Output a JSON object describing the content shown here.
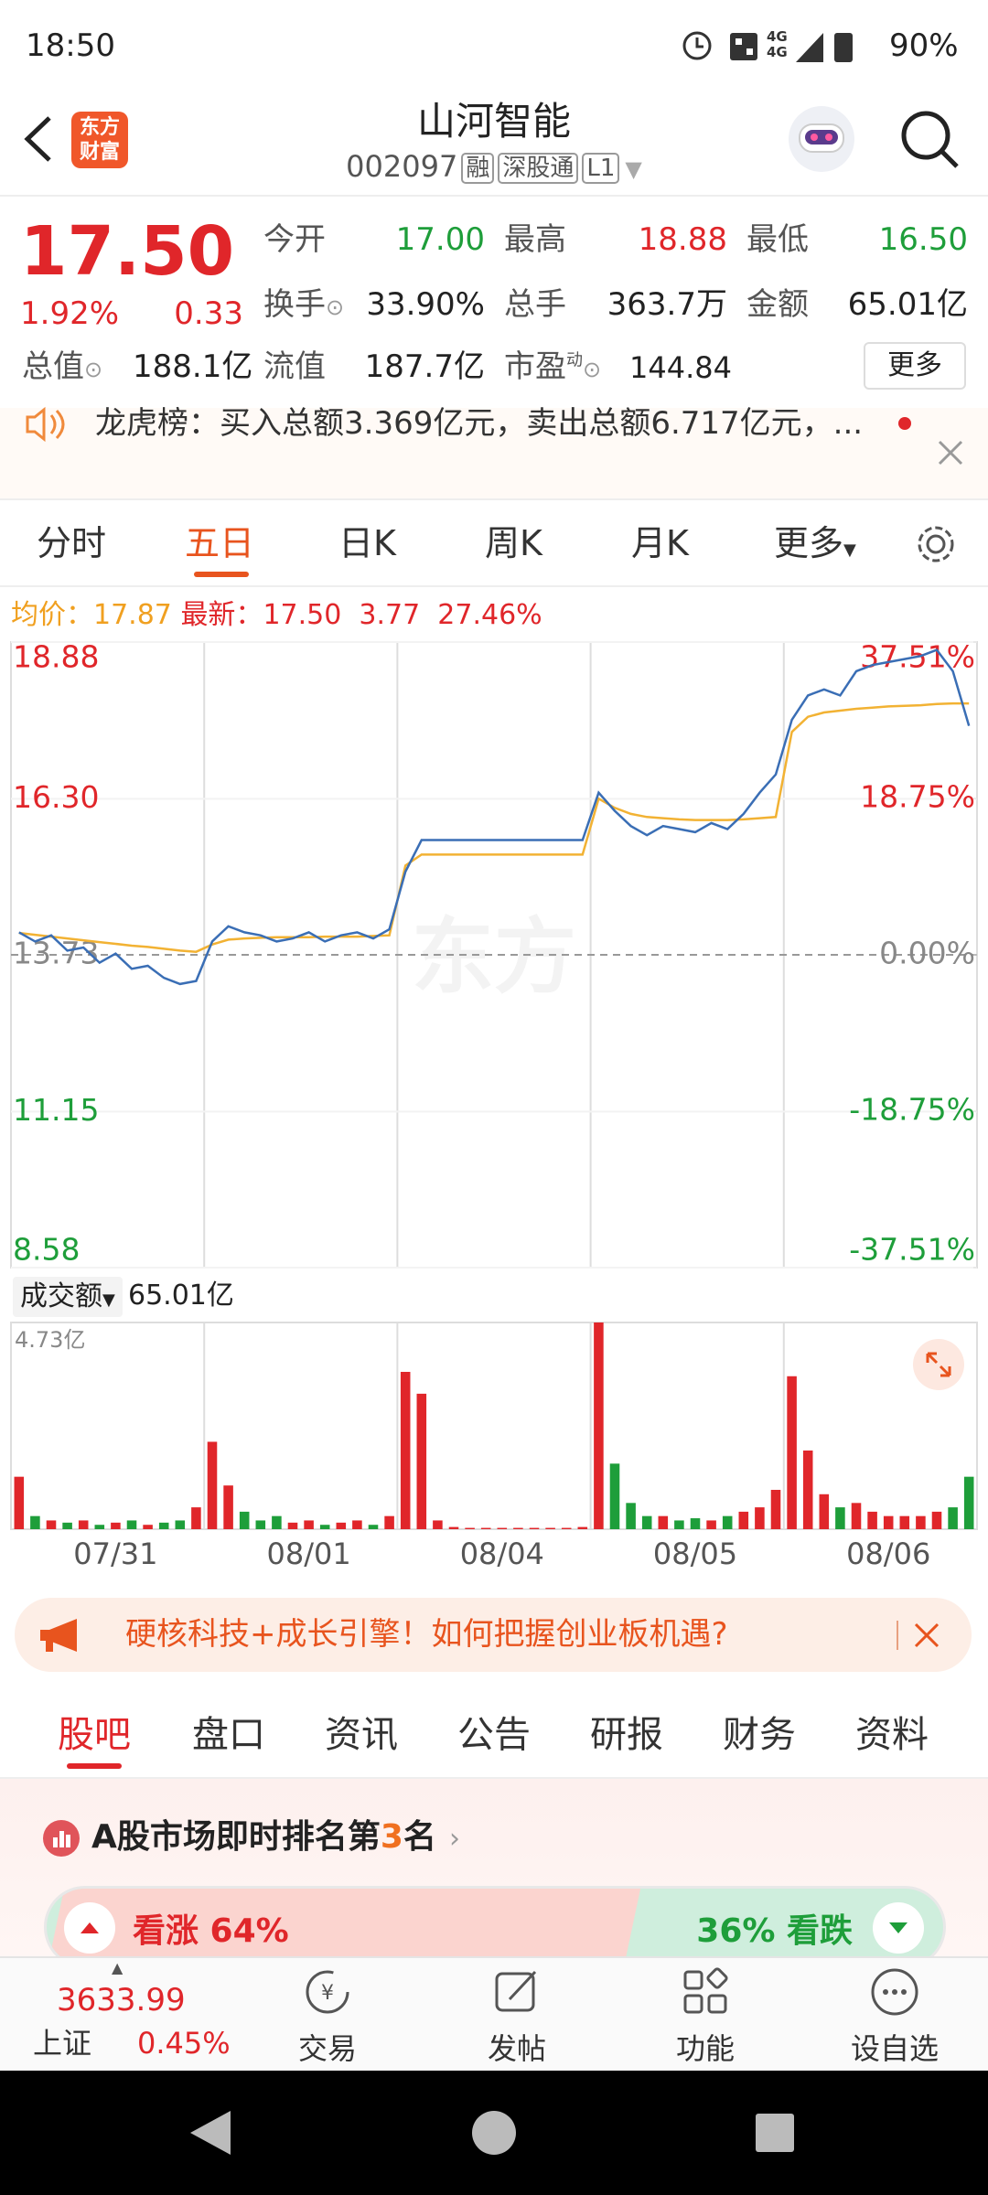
{
  "status": {
    "time": "18:50",
    "net": "4G",
    "battery": "90%"
  },
  "header": {
    "logo": [
      "东方",
      "财富"
    ],
    "title": "山河智能",
    "code": "002097",
    "tags": [
      "融",
      "深股通",
      "L1"
    ]
  },
  "quote": {
    "price": "17.50",
    "pct": "1.92%",
    "change": "0.33",
    "fields": [
      {
        "label": "今开",
        "value": "17.00"
      },
      {
        "label": "最高",
        "value": "18.88"
      },
      {
        "label": "最低",
        "value": "16.50"
      },
      {
        "label": "换手",
        "value": "33.90%"
      },
      {
        "label": "总手",
        "value": "363.7万"
      },
      {
        "label": "金额",
        "value": "65.01亿"
      },
      {
        "label": "总值",
        "value": "188.1亿"
      },
      {
        "label": "流值",
        "value": "187.7亿"
      },
      {
        "label": "市盈",
        "sup": "动",
        "value": "144.84"
      }
    ],
    "more": "更多"
  },
  "notice": "龙虎榜：买入总额3.369亿元，卖出总额6.717亿元，...",
  "tabs": [
    "分时",
    "五日",
    "日K",
    "周K",
    "月K",
    "更多"
  ],
  "chart_data": [
    {
      "type": "line",
      "change": "3.77",
      "change_pct": "27.46%",
      "categories": [
        null,
        null,
        null,
        null,
        null,
        null,
        "07/31",
        null,
        null,
        null,
        null,
        null,
        null,
        null,
        null,
        null,
        null,
        null,
        "08/01",
        null,
        null,
        null,
        null,
        null,
        null,
        null,
        null,
        null,
        null,
        null,
        "08/04",
        null,
        null,
        null,
        null,
        null,
        null,
        null,
        null,
        null,
        null,
        null,
        "08/05",
        null,
        null,
        null,
        null,
        null,
        null,
        null,
        null,
        null,
        null,
        null,
        "08/06",
        null,
        null,
        null,
        null,
        null
      ],
      "ylim": [
        8.58,
        18.88
      ],
      "yticks": [
        18.88,
        {
          "value": 16.3,
          "label": "16.30"
        },
        13.73,
        11.15,
        8.58
      ],
      "y2lim": [
        -37.51,
        37.51
      ],
      "y2ticks": [
        {
          "value": 37.51,
          "label": "37.51%"
        },
        {
          "value": 18.75,
          "label": "18.75%"
        },
        {
          "value": 0,
          "label": "0.00%"
        },
        {
          "value": -18.75,
          "label": "-18.75%"
        },
        {
          "value": -37.51,
          "label": "-37.51%"
        }
      ],
      "grid": true,
      "series": [
        {
          "name": "均价：",
          "current": "17.87",
          "color": "#f2b233",
          "values": [
            14.09,
            14.06,
            14.03,
            14.0,
            13.97,
            13.94,
            13.91,
            13.88,
            13.86,
            13.83,
            13.8,
            13.78,
            13.9,
            13.98,
            14.0,
            14.01,
            14.02,
            14.02,
            14.02,
            14.03,
            14.03,
            14.03,
            14.04,
            14.05,
            15.2,
            15.38,
            15.38,
            15.38,
            15.38,
            15.38,
            15.38,
            15.38,
            15.38,
            15.38,
            15.38,
            15.38,
            16.3,
            16.15,
            16.05,
            16.0,
            15.98,
            15.96,
            15.95,
            15.95,
            15.95,
            15.96,
            15.98,
            16.0,
            17.4,
            17.65,
            17.72,
            17.75,
            17.78,
            17.8,
            17.82,
            17.83,
            17.84,
            17.86,
            17.87,
            17.87
          ]
        },
        {
          "name": "最新：",
          "current": "17.50",
          "color": "#3a6eb5",
          "values": [
            14.1,
            13.95,
            14.05,
            13.8,
            13.85,
            13.6,
            13.75,
            13.5,
            13.55,
            13.35,
            13.25,
            13.3,
            13.95,
            14.2,
            14.1,
            14.05,
            13.95,
            14.0,
            14.1,
            13.95,
            14.05,
            14.1,
            14.0,
            14.15,
            15.1,
            15.62,
            15.62,
            15.62,
            15.62,
            15.62,
            15.62,
            15.62,
            15.62,
            15.62,
            15.62,
            15.62,
            16.4,
            16.1,
            15.85,
            15.7,
            15.85,
            15.8,
            15.75,
            15.9,
            15.8,
            16.05,
            16.4,
            16.7,
            17.6,
            18.0,
            18.1,
            18.0,
            18.4,
            18.5,
            18.55,
            18.6,
            18.65,
            18.75,
            18.4,
            17.5
          ]
        }
      ]
    },
    {
      "type": "bar",
      "label": "成交额",
      "total": "65.01亿",
      "ylim": [
        0,
        4.73
      ],
      "yticks": [
        {
          "value": 4.73,
          "label": "4.73亿"
        }
      ],
      "values": [
        1.2,
        0.3,
        0.2,
        0.15,
        0.2,
        0.1,
        0.15,
        0.2,
        0.1,
        0.15,
        0.2,
        0.5,
        2.0,
        1.0,
        0.4,
        0.2,
        0.3,
        0.15,
        0.2,
        0.1,
        0.15,
        0.2,
        0.1,
        0.3,
        3.6,
        3.1,
        0.2,
        0.05,
        0.03,
        0.03,
        0.03,
        0.03,
        0.03,
        0.03,
        0.03,
        0.05,
        4.73,
        1.5,
        0.6,
        0.3,
        0.3,
        0.2,
        0.25,
        0.2,
        0.3,
        0.4,
        0.5,
        0.9,
        3.5,
        1.8,
        0.8,
        0.5,
        0.6,
        0.4,
        0.3,
        0.3,
        0.3,
        0.4,
        0.5,
        1.2
      ]
    }
  ],
  "banner": "硬核科技+成长引擎！如何把握创业板机遇?",
  "tabs2": [
    "股吧",
    "盘口",
    "资讯",
    "公告",
    "研报",
    "财务",
    "资料"
  ],
  "rank": {
    "pre": "A股市场即时排名第",
    "num": "3",
    "post": "名"
  },
  "sentiment": {
    "bull": "看涨 64%",
    "bear": "36% 看跌"
  },
  "nav": {
    "index_value": "3633.99",
    "index_name": "上证",
    "index_pct": "0.45%",
    "items": [
      "交易",
      "发帖",
      "功能",
      "设自选"
    ]
  }
}
